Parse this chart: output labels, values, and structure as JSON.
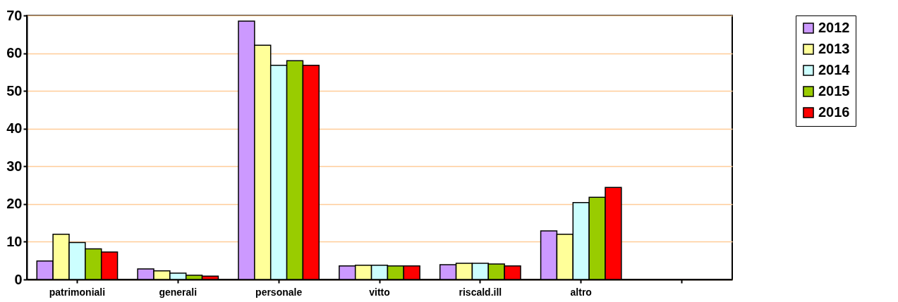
{
  "chart_data": {
    "type": "bar",
    "categories": [
      "patrimoniali",
      "generali",
      "personale",
      "vitto",
      "riscald.ill",
      "altro",
      null
    ],
    "series": [
      {
        "name": "2012",
        "color": "#cc99ff",
        "values": [
          4.9,
          2.8,
          68.5,
          3.6,
          3.9,
          12.9,
          null
        ]
      },
      {
        "name": "2013",
        "color": "#ffff99",
        "values": [
          12,
          2.3,
          62.1,
          3.8,
          4.3,
          12,
          null
        ]
      },
      {
        "name": "2014",
        "color": "#ccffff",
        "values": [
          9.8,
          1.7,
          56.8,
          3.8,
          4.3,
          20.4,
          null
        ]
      },
      {
        "name": "2015",
        "color": "#99cc00",
        "values": [
          8.1,
          1.1,
          58,
          3.6,
          4.1,
          21.8,
          null
        ]
      },
      {
        "name": "2016",
        "color": "#ff0000",
        "values": [
          7.3,
          0.9,
          56.8,
          3.6,
          3.6,
          24.4,
          null
        ]
      }
    ],
    "ylim": [
      0,
      70
    ],
    "yticks": [
      0,
      10,
      20,
      30,
      40,
      50,
      60,
      70
    ],
    "grid": "y",
    "legend": "right"
  }
}
